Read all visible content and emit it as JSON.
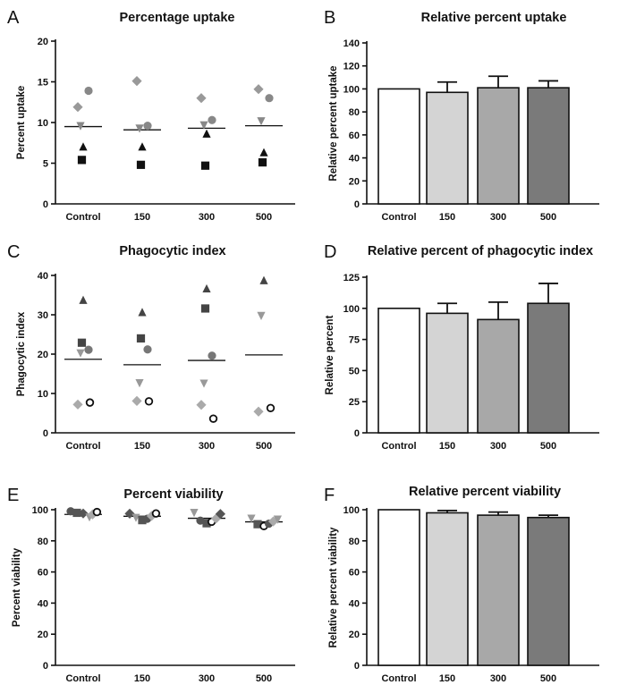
{
  "chart_data": [
    {
      "id": "A",
      "type": "scatter",
      "title": "Percentage uptake",
      "ylabel": "Percent uptake",
      "ylim": [
        0,
        20
      ],
      "yticks": [
        0,
        5,
        10,
        15,
        20
      ],
      "categories": [
        "Control",
        "150",
        "300",
        "500"
      ],
      "means": [
        9.5,
        9.1,
        9.3,
        9.6
      ],
      "points": [
        {
          "category": "Control",
          "shape": "circle",
          "fill": "#888888",
          "value": 13.9
        },
        {
          "category": "Control",
          "shape": "diamond",
          "fill": "#999999",
          "value": 11.9
        },
        {
          "category": "Control",
          "shape": "triangle-down",
          "fill": "#888888",
          "value": 9.6
        },
        {
          "category": "Control",
          "shape": "triangle-up",
          "fill": "#111111",
          "value": 7.0
        },
        {
          "category": "Control",
          "shape": "square",
          "fill": "#111111",
          "value": 5.4
        },
        {
          "category": "150",
          "shape": "diamond",
          "fill": "#999999",
          "value": 15.1
        },
        {
          "category": "150",
          "shape": "circle",
          "fill": "#888888",
          "value": 9.6
        },
        {
          "category": "150",
          "shape": "triangle-down",
          "fill": "#888888",
          "value": 9.3
        },
        {
          "category": "150",
          "shape": "triangle-up",
          "fill": "#111111",
          "value": 7.0
        },
        {
          "category": "150",
          "shape": "square",
          "fill": "#111111",
          "value": 4.8
        },
        {
          "category": "300",
          "shape": "diamond",
          "fill": "#999999",
          "value": 13.0
        },
        {
          "category": "300",
          "shape": "circle",
          "fill": "#888888",
          "value": 10.3
        },
        {
          "category": "300",
          "shape": "triangle-down",
          "fill": "#888888",
          "value": 9.7
        },
        {
          "category": "300",
          "shape": "triangle-up",
          "fill": "#111111",
          "value": 8.6
        },
        {
          "category": "300",
          "shape": "square",
          "fill": "#111111",
          "value": 4.7
        },
        {
          "category": "500",
          "shape": "diamond",
          "fill": "#999999",
          "value": 14.1
        },
        {
          "category": "500",
          "shape": "circle",
          "fill": "#888888",
          "value": 13.0
        },
        {
          "category": "500",
          "shape": "triangle-down",
          "fill": "#888888",
          "value": 10.2
        },
        {
          "category": "500",
          "shape": "triangle-up",
          "fill": "#111111",
          "value": 6.3
        },
        {
          "category": "500",
          "shape": "square",
          "fill": "#111111",
          "value": 5.1
        }
      ]
    },
    {
      "id": "B",
      "type": "bar",
      "title": "Relative percent uptake",
      "ylabel": "Relative percent uptake",
      "ylim": [
        0,
        140
      ],
      "yticks": [
        0,
        20,
        40,
        60,
        80,
        100,
        120,
        140
      ],
      "categories": [
        "Control",
        "150",
        "300",
        "500"
      ],
      "values": [
        100,
        97,
        101,
        101
      ],
      "errors": [
        0,
        9,
        10,
        6
      ],
      "colors": [
        "#ffffff",
        "#d4d4d4",
        "#a8a8a8",
        "#7a7a7a"
      ]
    },
    {
      "id": "C",
      "type": "scatter",
      "title": "Phagocytic index",
      "ylabel": "Phagocytic index",
      "ylim": [
        0,
        40
      ],
      "yticks": [
        0,
        10,
        20,
        30,
        40
      ],
      "categories": [
        "Control",
        "150",
        "300",
        "500"
      ],
      "means": [
        18.7,
        17.3,
        18.4,
        19.8
      ],
      "points": [
        {
          "category": "Control",
          "shape": "triangle-up",
          "fill": "#444444",
          "value": 33.7
        },
        {
          "category": "Control",
          "shape": "square",
          "fill": "#444444",
          "value": 22.9
        },
        {
          "category": "Control",
          "shape": "circle",
          "fill": "#777777",
          "value": 21.1
        },
        {
          "category": "Control",
          "shape": "triangle-down",
          "fill": "#999999",
          "value": 20.3
        },
        {
          "category": "Control",
          "shape": "open-circle",
          "fill": "#ffffff",
          "value": 7.7
        },
        {
          "category": "Control",
          "shape": "diamond",
          "fill": "#aaaaaa",
          "value": 7.2
        },
        {
          "category": "150",
          "shape": "triangle-up",
          "fill": "#444444",
          "value": 30.6
        },
        {
          "category": "150",
          "shape": "square",
          "fill": "#444444",
          "value": 24.0
        },
        {
          "category": "150",
          "shape": "circle",
          "fill": "#777777",
          "value": 21.2
        },
        {
          "category": "150",
          "shape": "triangle-down",
          "fill": "#999999",
          "value": 12.7
        },
        {
          "category": "150",
          "shape": "diamond",
          "fill": "#aaaaaa",
          "value": 8.1
        },
        {
          "category": "150",
          "shape": "open-circle",
          "fill": "#ffffff",
          "value": 8.0
        },
        {
          "category": "300",
          "shape": "triangle-up",
          "fill": "#444444",
          "value": 36.6
        },
        {
          "category": "300",
          "shape": "square",
          "fill": "#444444",
          "value": 31.6
        },
        {
          "category": "300",
          "shape": "circle",
          "fill": "#777777",
          "value": 19.6
        },
        {
          "category": "300",
          "shape": "triangle-down",
          "fill": "#999999",
          "value": 12.6
        },
        {
          "category": "300",
          "shape": "diamond",
          "fill": "#aaaaaa",
          "value": 7.1
        },
        {
          "category": "300",
          "shape": "open-circle",
          "fill": "#ffffff",
          "value": 3.6
        },
        {
          "category": "500",
          "shape": "triangle-up",
          "fill": "#444444",
          "value": 38.7
        },
        {
          "category": "500",
          "shape": "triangle-down",
          "fill": "#999999",
          "value": 29.8
        },
        {
          "category": "500",
          "shape": "open-circle",
          "fill": "#ffffff",
          "value": 6.3
        },
        {
          "category": "500",
          "shape": "diamond",
          "fill": "#aaaaaa",
          "value": 5.4
        }
      ]
    },
    {
      "id": "D",
      "type": "bar",
      "title": "Relative percent of phagocytic index",
      "ylabel": "Relative percent",
      "ylim": [
        0,
        125
      ],
      "yticks": [
        0,
        25,
        50,
        75,
        100,
        125
      ],
      "categories": [
        "Control",
        "150",
        "300",
        "500"
      ],
      "values": [
        100,
        96,
        91,
        104
      ],
      "errors": [
        0,
        8,
        14,
        16
      ],
      "colors": [
        "#ffffff",
        "#d4d4d4",
        "#a8a8a8",
        "#7a7a7a"
      ]
    },
    {
      "id": "E",
      "type": "scatter",
      "title": "Percent viability",
      "ylabel": "Percent viability",
      "ylim": [
        0,
        100
      ],
      "yticks": [
        0,
        20,
        40,
        60,
        80,
        100
      ],
      "categories": [
        "Control",
        "150",
        "300",
        "500"
      ],
      "means": [
        97.0,
        95.8,
        94.5,
        92.2
      ],
      "points": [
        {
          "category": "Control",
          "shape": "circle",
          "fill": "#555555",
          "value": 99.0,
          "offset": -2
        },
        {
          "category": "Control",
          "shape": "square",
          "fill": "#555555",
          "value": 98.0,
          "offset": -1
        },
        {
          "category": "Control",
          "shape": "diamond",
          "fill": "#555555",
          "value": 97.6,
          "offset": 0
        },
        {
          "category": "Control",
          "shape": "triangle-down",
          "fill": "#999999",
          "value": 95.3,
          "offset": 1
        },
        {
          "category": "Control",
          "shape": "diamond",
          "fill": "#aaaaaa",
          "value": 97.0,
          "offset": 1.5
        },
        {
          "category": "Control",
          "shape": "open-circle",
          "fill": "#ffffff",
          "value": 98.5,
          "offset": 2.2
        },
        {
          "category": "150",
          "shape": "diamond",
          "fill": "#555555",
          "value": 97.5,
          "offset": -2
        },
        {
          "category": "150",
          "shape": "triangle-down",
          "fill": "#999999",
          "value": 95.0,
          "offset": -1
        },
        {
          "category": "150",
          "shape": "square",
          "fill": "#555555",
          "value": 93.3,
          "offset": 0
        },
        {
          "category": "150",
          "shape": "circle",
          "fill": "#555555",
          "value": 94.2,
          "offset": 0.8
        },
        {
          "category": "150",
          "shape": "diamond",
          "fill": "#aaaaaa",
          "value": 96.0,
          "offset": 1.5
        },
        {
          "category": "150",
          "shape": "open-circle",
          "fill": "#ffffff",
          "value": 97.6,
          "offset": 2.2
        },
        {
          "category": "300",
          "shape": "triangle-down",
          "fill": "#999999",
          "value": 98.2,
          "offset": -2
        },
        {
          "category": "300",
          "shape": "circle",
          "fill": "#555555",
          "value": 93.0,
          "offset": -1
        },
        {
          "category": "300",
          "shape": "square",
          "fill": "#555555",
          "value": 91.3,
          "offset": 0
        },
        {
          "category": "300",
          "shape": "open-circle",
          "fill": "#ffffff",
          "value": 92.3,
          "offset": 0.8
        },
        {
          "category": "300",
          "shape": "diamond",
          "fill": "#aaaaaa",
          "value": 94.3,
          "offset": 1.5
        },
        {
          "category": "300",
          "shape": "diamond",
          "fill": "#555555",
          "value": 97.3,
          "offset": 2.2
        },
        {
          "category": "500",
          "shape": "triangle-down",
          "fill": "#999999",
          "value": 94.5,
          "offset": -2
        },
        {
          "category": "500",
          "shape": "square",
          "fill": "#555555",
          "value": 90.7,
          "offset": -1
        },
        {
          "category": "500",
          "shape": "open-circle",
          "fill": "#ffffff",
          "value": 89.5,
          "offset": 0
        },
        {
          "category": "500",
          "shape": "circle",
          "fill": "#555555",
          "value": 91.0,
          "offset": 0.8
        },
        {
          "category": "500",
          "shape": "diamond",
          "fill": "#aaaaaa",
          "value": 92.5,
          "offset": 1.5
        },
        {
          "category": "500",
          "shape": "triangle-down",
          "fill": "#999999",
          "value": 93.9,
          "offset": 2.2
        }
      ]
    },
    {
      "id": "F",
      "type": "bar",
      "title": "Relative percent viability",
      "ylabel": "Relative percent viability",
      "ylim": [
        0,
        100
      ],
      "yticks": [
        0,
        20,
        40,
        60,
        80,
        100
      ],
      "categories": [
        "Control",
        "150",
        "300",
        "500"
      ],
      "values": [
        100,
        98,
        96.5,
        95
      ],
      "errors": [
        0,
        1.5,
        2,
        1.5
      ],
      "colors": [
        "#ffffff",
        "#d4d4d4",
        "#a8a8a8",
        "#7a7a7a"
      ]
    }
  ]
}
